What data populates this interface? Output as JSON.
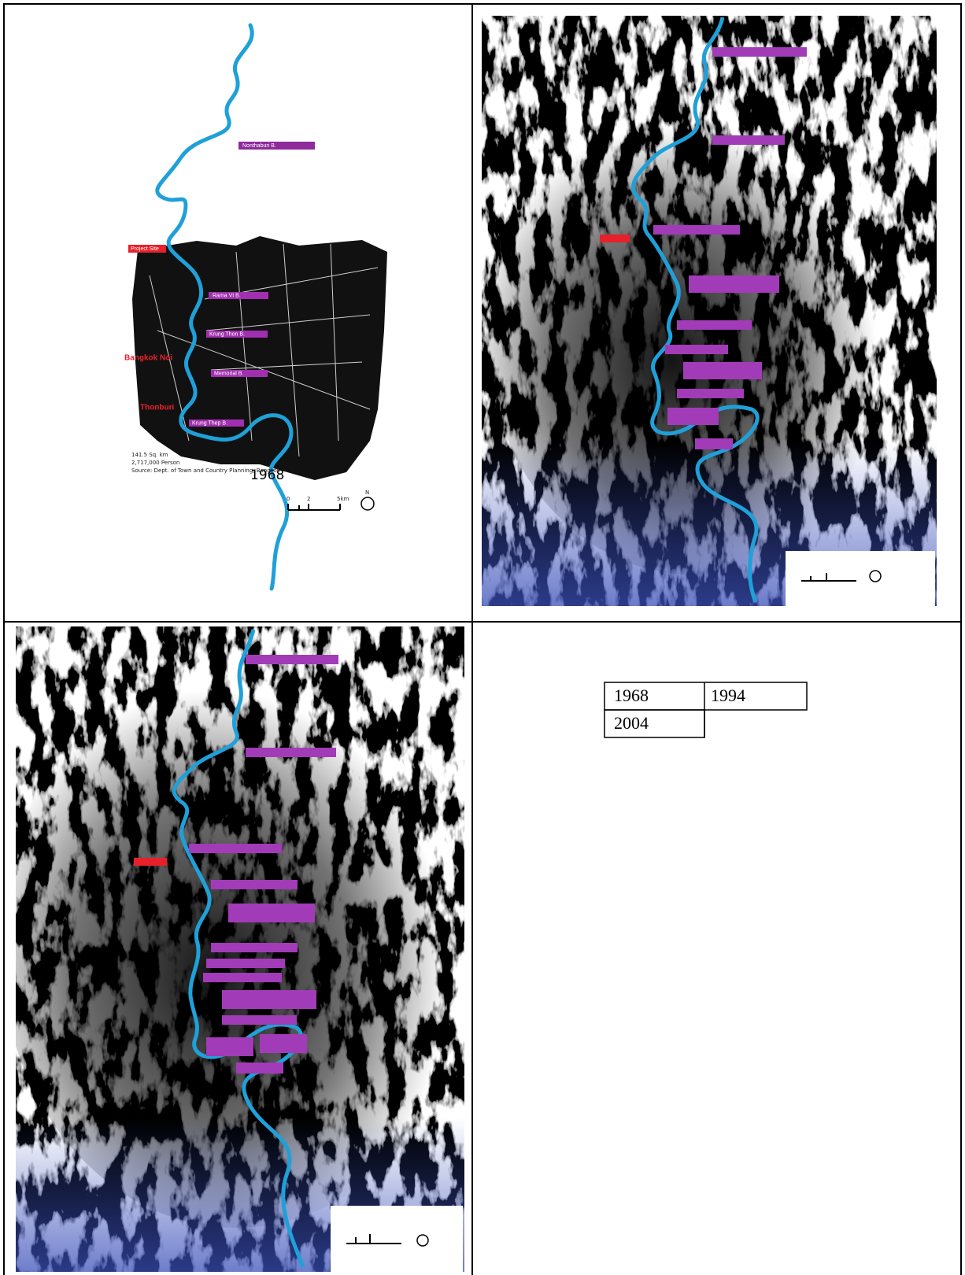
{
  "map_1968": {
    "bridges": [
      "Nonthaburi B.",
      "Rama VI B.",
      "Krung Thon B.",
      "Memorial B.",
      "Krung Thep B."
    ],
    "project_site": "Project Site",
    "districts": [
      "Bangkok Noi",
      "Thonburi"
    ],
    "stats": [
      "141.5 Sq. km",
      "2,717,000 Person"
    ],
    "year": "1968",
    "source": "Source: Dept. of Town and Country Planning, Bangkok",
    "scale": [
      "0",
      "2",
      "5km"
    ],
    "north": "N"
  },
  "legend_table": {
    "rows": [
      [
        "1968",
        "1994"
      ],
      [
        "2004"
      ]
    ]
  }
}
